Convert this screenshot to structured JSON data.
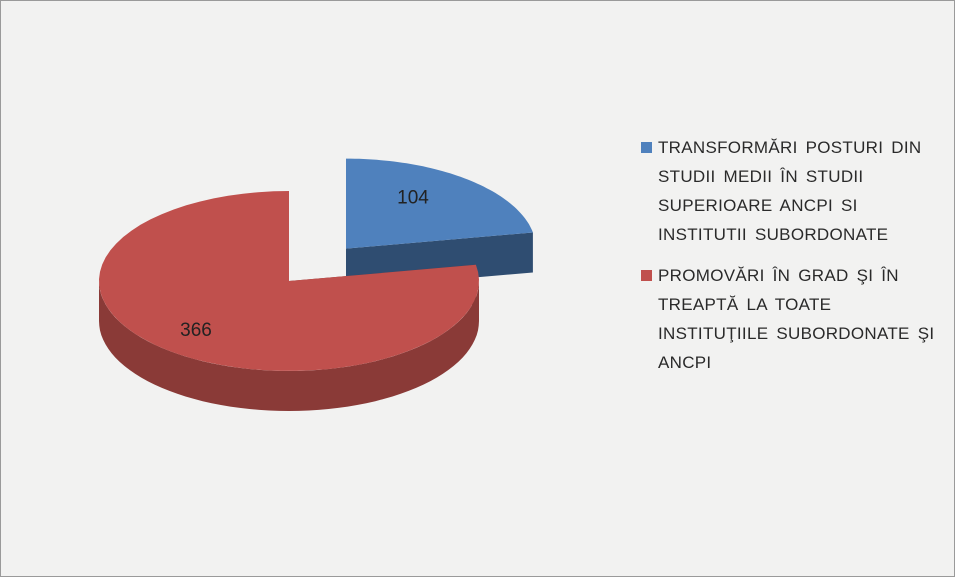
{
  "chart_data": {
    "type": "pie3d",
    "categories": [
      "TRANSFORMĂRI POSTURI DIN STUDII MEDII ÎN STUDII SUPERIOARE ANCPI SI INSTITUTII SUBORDONATE",
      "PROMOVĂRI ÎN GRAD ŞI ÎN TREAPTĂ LA TOATE INSTITUŢIILE SUBORDONATE ŞI ANCPI"
    ],
    "values": [
      104,
      366
    ],
    "colors": [
      "#4f81bd",
      "#c0504d"
    ],
    "legend": "right"
  }
}
